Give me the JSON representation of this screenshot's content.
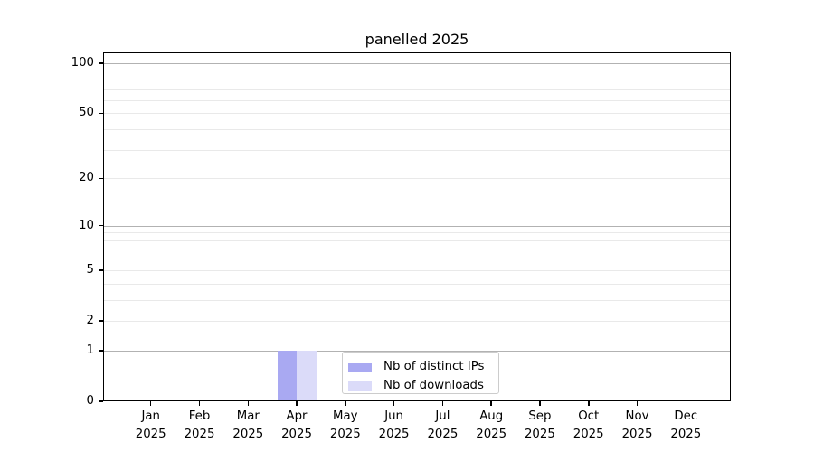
{
  "chart_data": {
    "type": "bar",
    "title": "panelled 2025",
    "year_label": "2025",
    "categories": [
      "Jan",
      "Feb",
      "Mar",
      "Apr",
      "May",
      "Jun",
      "Jul",
      "Aug",
      "Sep",
      "Oct",
      "Nov",
      "Dec"
    ],
    "series": [
      {
        "name": "Nb of distinct IPs",
        "color": "#a9a9f2",
        "values": [
          0,
          0,
          0,
          1,
          0,
          0,
          0,
          0,
          0,
          0,
          0,
          0
        ]
      },
      {
        "name": "Nb of downloads",
        "color": "#dbdbf9",
        "values": [
          0,
          0,
          0,
          1,
          0,
          0,
          0,
          0,
          0,
          0,
          0,
          0
        ]
      }
    ],
    "y_axis": {
      "scale": "log10(1+v)",
      "ticks": [
        0,
        1,
        2,
        5,
        10,
        20,
        50,
        100
      ],
      "major_gridlines": [
        1,
        10,
        100
      ],
      "minor_gridlines": [
        2,
        3,
        4,
        5,
        6,
        7,
        8,
        9,
        20,
        30,
        40,
        50,
        60,
        70,
        80,
        90
      ],
      "min": 0,
      "max": 116
    },
    "x_axis": {
      "tick_label_lines": 2
    },
    "legend": {
      "position": "lower center"
    },
    "grid": true
  }
}
